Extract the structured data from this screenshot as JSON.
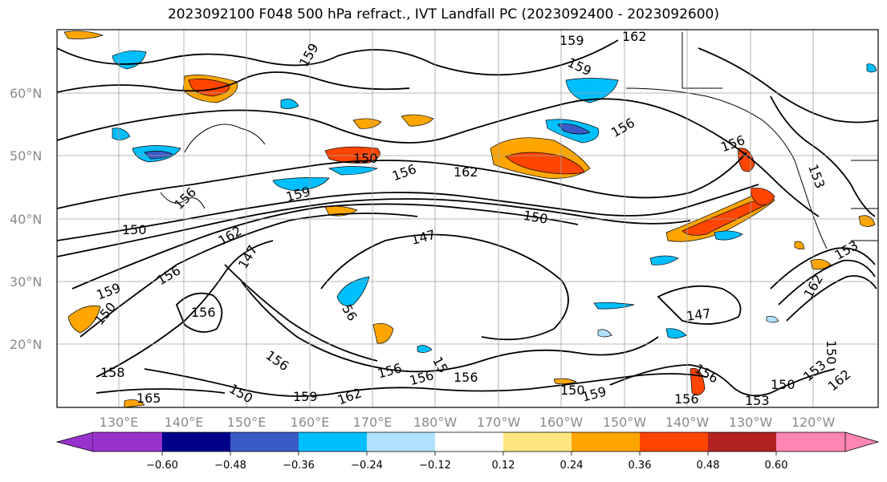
{
  "title": "2023092100 F048 500 hPa refract., IVT Landfall PC (2023092400 - 2023092600)",
  "map": {
    "lat_labels": [
      "60°N",
      "50°N",
      "40°N",
      "30°N",
      "20°N"
    ],
    "lon_labels": [
      "130°E",
      "140°E",
      "150°E",
      "160°E",
      "170°E",
      "180°W",
      "170°W",
      "160°W",
      "150°W",
      "140°W",
      "130°W",
      "120°W"
    ],
    "contour_labels": [
      "159",
      "162",
      "159",
      "159",
      "156",
      "156",
      "150",
      "156",
      "162",
      "153",
      "159",
      "150",
      "147",
      "162",
      "147",
      "150",
      "156",
      "159",
      "156",
      "150",
      "156",
      "156",
      "156",
      "56",
      "147",
      "156",
      "150",
      "153",
      "162",
      "156",
      "159",
      "162",
      "150",
      "165",
      "153",
      "150",
      "162",
      "159",
      "150",
      "156",
      "15",
      "156",
      "158",
      "153"
    ]
  },
  "colorbar": {
    "ticks": [
      "−0.60",
      "−0.48",
      "−0.36",
      "−0.24",
      "−0.12",
      "0.12",
      "0.24",
      "0.36",
      "0.48",
      "0.60"
    ],
    "colors": [
      "#9932cc",
      "#00008b",
      "#3a5bc7",
      "#00bfff",
      "#b0e2ff",
      "#ffffff",
      "#ffe680",
      "#ffa500",
      "#ff4500",
      "#b22222",
      "#ff85b3"
    ]
  }
}
